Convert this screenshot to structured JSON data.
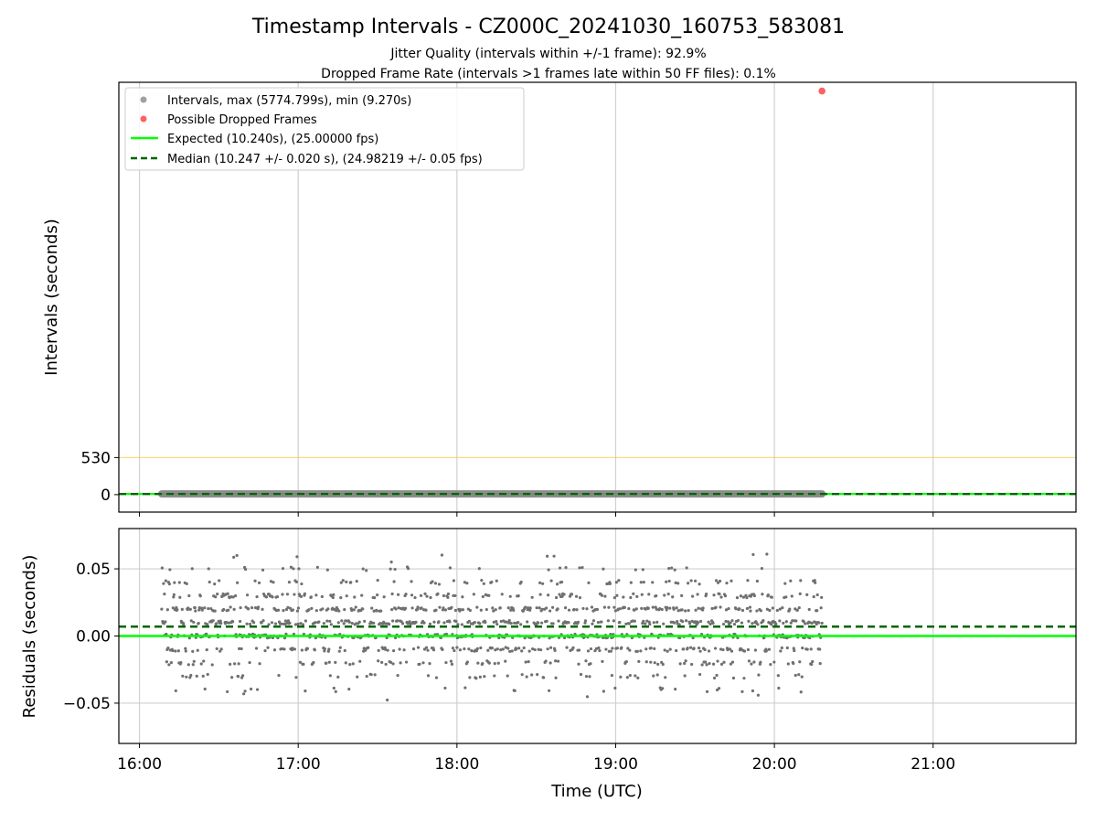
{
  "chart_data": [
    {
      "type": "scatter",
      "title": "Timestamp Intervals - CZ000C_20241030_160753_583081",
      "subtitles": [
        "Jitter Quality (intervals within +/-1 frame): 92.9%",
        "Dropped Frame Rate (intervals >1 frames late within 50 FF files): 0.1%"
      ],
      "xlabel": "",
      "ylabel": "Intervals (seconds)",
      "xlim_hours": [
        15.87,
        21.9
      ],
      "ylim": [
        -250,
        5900
      ],
      "yticks": [
        0,
        530
      ],
      "ytick_labels": [
        "0",
        "530"
      ],
      "grid": true,
      "legend": {
        "placement": "upper-left",
        "entries": [
          {
            "label": "Intervals, max (5774.799s), min (9.270s)",
            "marker": "point",
            "color": "#a0a0a0"
          },
          {
            "label": "Possible Dropped Frames",
            "marker": "point",
            "color": "#ff6060"
          },
          {
            "label": "Expected (10.240s), (25.00000 fps)",
            "marker": "line",
            "color": "#00ff00"
          },
          {
            "label": "Median (10.247 +/- 0.020 s), (24.98219 +/- 0.05 fps)",
            "marker": "dashed",
            "color": "#006400"
          }
        ]
      },
      "series": [
        {
          "name": "Intervals, max (5774.799s), min (9.270s)",
          "x_range_hours": [
            16.14,
            20.3
          ],
          "y": 10.24,
          "color": "#808080"
        },
        {
          "name": "Possible Dropped Frames",
          "points": [
            {
              "x_hours": 20.3,
              "y": 5774.8
            }
          ],
          "color": "#ff6060"
        }
      ],
      "hlines": [
        {
          "y": 530,
          "color": "#f5c842",
          "style": "solid"
        },
        {
          "y": 10.24,
          "color": "#00ff00",
          "style": "solid",
          "label": "Expected"
        },
        {
          "y": 10.247,
          "color": "#006400",
          "style": "dashed",
          "label": "Median"
        }
      ]
    },
    {
      "type": "scatter",
      "title": "",
      "xlabel": "Time (UTC)",
      "ylabel": "Residuals (seconds)",
      "xlim_hours": [
        15.87,
        21.9
      ],
      "ylim": [
        -0.08,
        0.08
      ],
      "yticks": [
        0.05,
        0.0,
        -0.05
      ],
      "ytick_labels": [
        "0.05",
        "0.00",
        "−0.05"
      ],
      "xticks_hours": [
        16,
        17,
        18,
        19,
        20,
        21
      ],
      "xtick_labels": [
        "16:00",
        "17:00",
        "18:00",
        "19:00",
        "20:00",
        "21:00"
      ],
      "grid": true,
      "series": [
        {
          "name": "Residuals",
          "x_range_hours": [
            16.14,
            20.3
          ],
          "count": 1450,
          "mean": 0.007,
          "std": 0.02,
          "min": -0.05,
          "max": 0.061,
          "color": "#707070"
        }
      ],
      "hlines": [
        {
          "y": 0.0,
          "color": "#00ff00",
          "style": "solid",
          "label": "Expected"
        },
        {
          "y": 0.007,
          "color": "#006400",
          "style": "dashed",
          "label": "Median"
        }
      ]
    }
  ]
}
